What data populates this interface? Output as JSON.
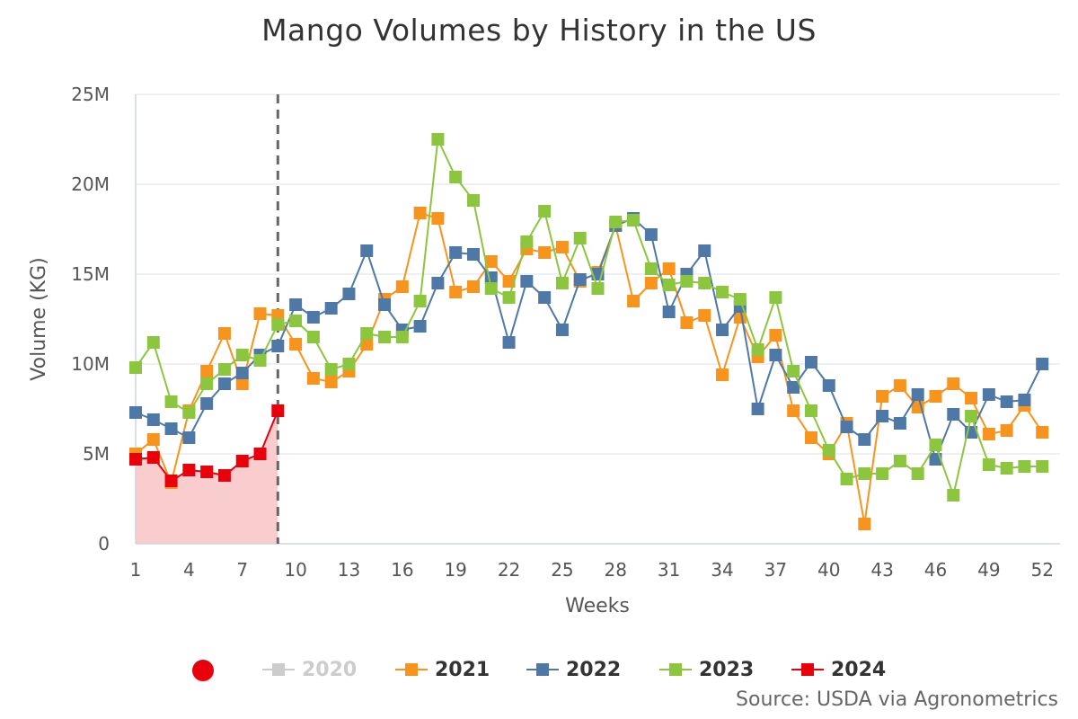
{
  "title": "Mango Volumes by History in the US",
  "source": "Source: USDA via Agronometrics",
  "chart_data": {
    "type": "line",
    "title": "Mango Volumes by History in the US",
    "xlabel": "Weeks",
    "ylabel": "Volume (KG)",
    "ylim": [
      0,
      25000000
    ],
    "xlim": [
      1,
      53
    ],
    "y_ticks": [
      0,
      5000000,
      10000000,
      15000000,
      20000000,
      25000000
    ],
    "y_tick_labels": [
      "0",
      "5M",
      "10M",
      "15M",
      "20M",
      "25M"
    ],
    "x_ticks": [
      1,
      4,
      7,
      10,
      13,
      16,
      19,
      22,
      25,
      28,
      31,
      34,
      37,
      40,
      43,
      46,
      49,
      52
    ],
    "x_tick_labels": [
      "1",
      "4",
      "7",
      "10",
      "13",
      "16",
      "19",
      "22",
      "25",
      "28",
      "31",
      "34",
      "37",
      "40",
      "43",
      "46",
      "49",
      "52"
    ],
    "current_week_marker": 9,
    "legend_placement": "bottom",
    "series": [
      {
        "name": "2020",
        "color": "#cccccc",
        "hidden": true,
        "values": []
      },
      {
        "name": "2021",
        "color": "#f7941d",
        "values": [
          5.0,
          5.8,
          3.4,
          7.4,
          9.6,
          11.7,
          8.9,
          12.8,
          12.7,
          11.1,
          9.2,
          9.0,
          9.6,
          11.1,
          13.6,
          14.3,
          18.4,
          18.1,
          14.0,
          14.3,
          15.7,
          14.6,
          16.4,
          16.2,
          16.5,
          14.6,
          15.1,
          17.7,
          13.5,
          14.5,
          15.3,
          12.3,
          12.7,
          9.4,
          12.6,
          10.4,
          11.6,
          7.4,
          5.9,
          5.0,
          6.7,
          1.1,
          8.2,
          8.8,
          7.6,
          8.2,
          8.9,
          8.1,
          6.1,
          6.3,
          7.7,
          6.2
        ]
      },
      {
        "name": "2022",
        "color": "#4e79a7",
        "values": [
          7.3,
          6.9,
          6.4,
          5.9,
          7.8,
          8.9,
          9.5,
          10.5,
          11.0,
          13.3,
          12.6,
          13.1,
          13.9,
          16.3,
          13.3,
          11.9,
          12.1,
          14.5,
          16.2,
          16.1,
          14.8,
          11.2,
          14.6,
          13.7,
          11.9,
          14.7,
          15.0,
          17.7,
          18.1,
          17.2,
          12.9,
          15.0,
          16.3,
          11.9,
          13.2,
          7.5,
          10.5,
          8.7,
          10.1,
          8.8,
          6.5,
          5.8,
          7.1,
          6.7,
          8.3,
          4.7,
          7.2,
          6.2,
          8.3,
          7.9,
          8.0,
          10.0
        ]
      },
      {
        "name": "2023",
        "color": "#8cc63f",
        "values": [
          9.8,
          11.2,
          7.9,
          7.3,
          8.9,
          9.7,
          10.5,
          10.2,
          12.2,
          12.4,
          11.5,
          9.7,
          10.0,
          11.7,
          11.5,
          11.5,
          13.5,
          22.5,
          20.4,
          19.1,
          14.2,
          13.7,
          16.8,
          18.5,
          14.5,
          17.0,
          14.2,
          17.9,
          18.0,
          15.3,
          14.4,
          14.6,
          14.5,
          14.0,
          13.6,
          10.8,
          13.7,
          9.6,
          7.4,
          5.2,
          3.6,
          3.9,
          3.9,
          4.6,
          3.9,
          5.5,
          2.7,
          7.1,
          4.4,
          4.2,
          4.3,
          4.3
        ]
      },
      {
        "name": "2024",
        "color": "#e8000b",
        "values": [
          4.7,
          4.8,
          3.5,
          4.1,
          4.0,
          3.8,
          4.6,
          5.0,
          7.4
        ]
      }
    ],
    "units_note": "values in millions of KG"
  }
}
